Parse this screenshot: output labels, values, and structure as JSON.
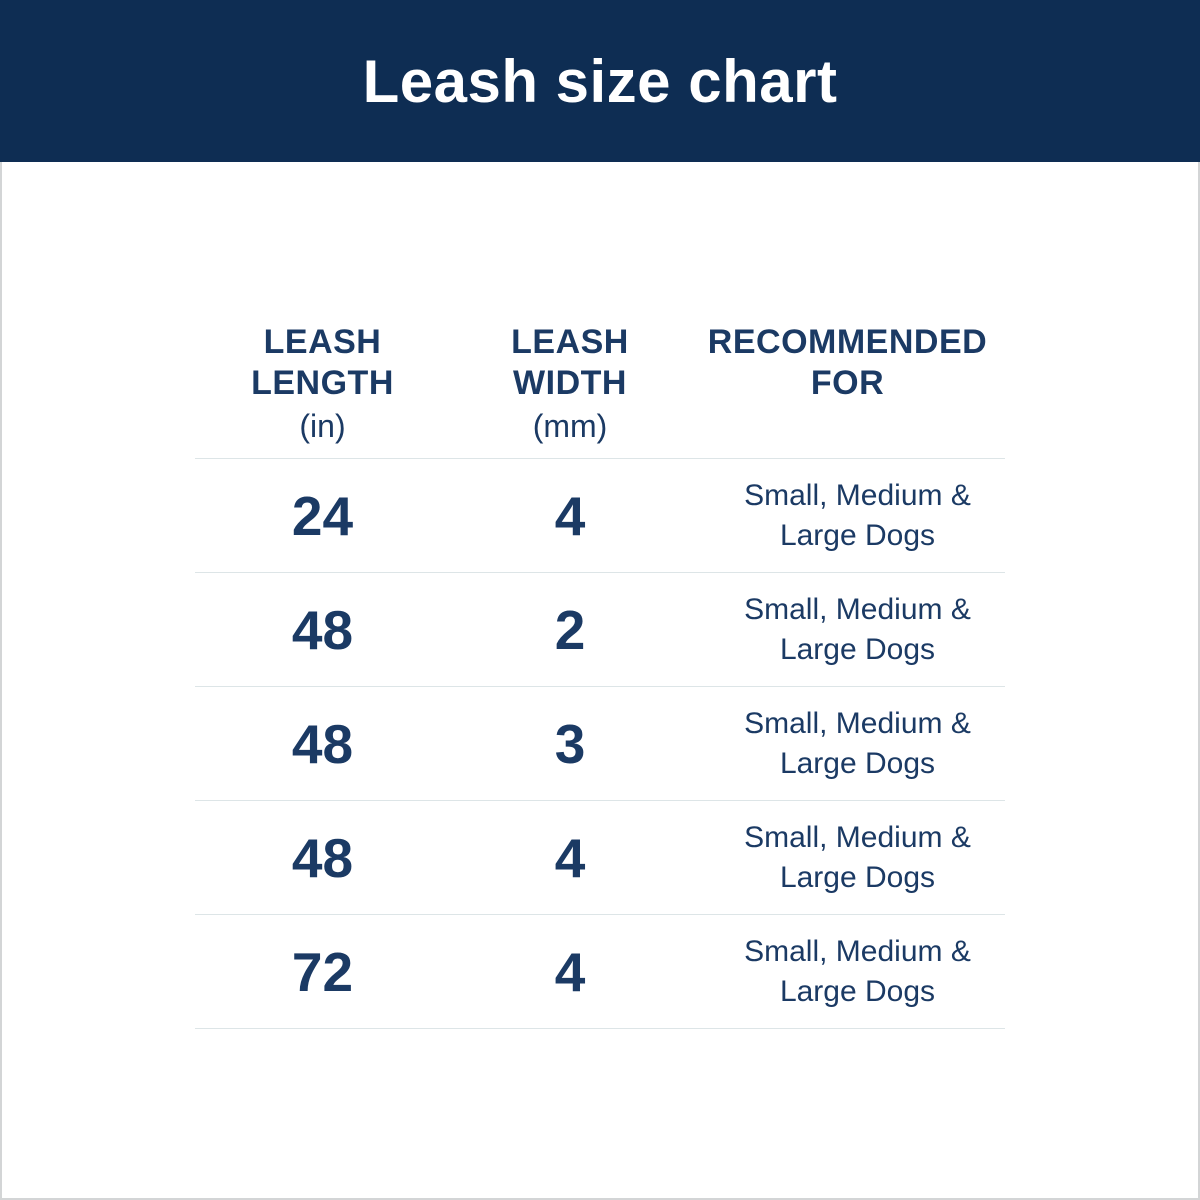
{
  "header": {
    "title": "Leash size chart"
  },
  "colors": {
    "banner_navy": "#0e2d53",
    "text_navy": "#1b3a64",
    "divider_gray": "#dde5e7",
    "background": "#ffffff"
  },
  "table": {
    "columns": [
      {
        "line1": "LEASH",
        "line2": "LENGTH",
        "unit": "(in)"
      },
      {
        "line1": "LEASH",
        "line2": "WIDTH",
        "unit": "(mm)"
      },
      {
        "line1": "RECOMMENDED",
        "line2": "FOR",
        "unit": ""
      }
    ]
  },
  "chart_data": {
    "type": "table",
    "title": "Leash size chart",
    "columns": [
      "Leash Length (in)",
      "Leash Width (mm)",
      "Recommended For"
    ],
    "rows": [
      [
        "24",
        "4",
        "Small, Medium & Large Dogs"
      ],
      [
        "48",
        "2",
        "Small, Medium & Large Dogs"
      ],
      [
        "48",
        "3",
        "Small, Medium & Large Dogs"
      ],
      [
        "48",
        "4",
        "Small, Medium & Large Dogs"
      ],
      [
        "72",
        "4",
        "Small, Medium & Large Dogs"
      ]
    ]
  }
}
